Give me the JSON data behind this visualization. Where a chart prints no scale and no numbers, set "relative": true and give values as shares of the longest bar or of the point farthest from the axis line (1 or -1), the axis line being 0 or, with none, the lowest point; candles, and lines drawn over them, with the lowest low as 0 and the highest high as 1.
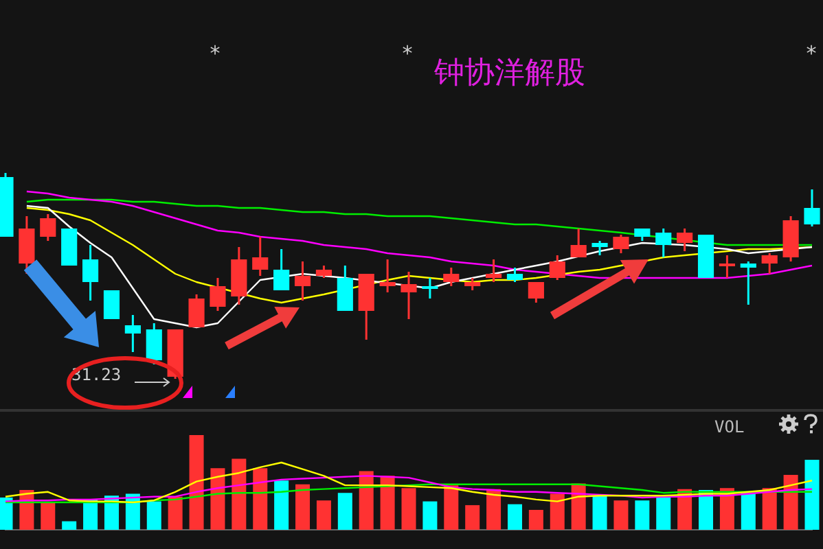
{
  "chart_data": [
    {
      "type": "candlestick",
      "title": "钟协洋解股",
      "relative": true,
      "categories": [
        null,
        null,
        null,
        null,
        null,
        null,
        null,
        null,
        null,
        null,
        null,
        null,
        null,
        null,
        null,
        null,
        null,
        null,
        null,
        null,
        null,
        null,
        null,
        null,
        null,
        null,
        null,
        null,
        null,
        null,
        null,
        null,
        null,
        null,
        null,
        null,
        null,
        null,
        null
      ],
      "ohlc": [
        [
          0.98,
          1,
          0.69,
          0.69
        ],
        [
          0.56,
          0.79,
          0.51,
          0.73
        ],
        [
          0.69,
          0.8,
          0.67,
          0.78
        ],
        [
          0.73,
          0.73,
          0.55,
          0.55
        ],
        [
          0.58,
          0.65,
          0.38,
          0.47
        ],
        [
          0.43,
          0.43,
          0.29,
          0.29
        ],
        [
          0.26,
          0.31,
          0.13,
          0.22
        ],
        [
          0.24,
          0.27,
          0.07,
          0.09
        ],
        [
          0.01,
          0.24,
          0,
          0.24
        ],
        [
          0.25,
          0.41,
          0.25,
          0.39
        ],
        [
          0.35,
          0.49,
          0.33,
          0.45
        ],
        [
          0.4,
          0.64,
          0.36,
          0.58
        ],
        [
          0.53,
          0.69,
          0.5,
          0.59
        ],
        [
          0.53,
          0.63,
          0.43,
          0.43
        ],
        [
          0.45,
          0.57,
          0.38,
          0.5
        ],
        [
          0.5,
          0.55,
          0.49,
          0.53
        ],
        [
          0.49,
          0.55,
          0.33,
          0.33
        ],
        [
          0.33,
          0.51,
          0.19,
          0.51
        ],
        [
          0.45,
          0.58,
          0.42,
          0.47
        ],
        [
          0.42,
          0.52,
          0.29,
          0.46
        ],
        [
          0.45,
          0.49,
          0.39,
          0.44
        ],
        [
          0.47,
          0.54,
          0.45,
          0.51
        ],
        [
          0.45,
          0.49,
          0.43,
          0.47
        ],
        [
          0.49,
          0.58,
          0.47,
          0.51
        ],
        [
          0.51,
          0.54,
          0.47,
          0.48
        ],
        [
          0.39,
          0.47,
          0.37,
          0.47
        ],
        [
          0.49,
          0.6,
          0.48,
          0.57
        ],
        [
          0.59,
          0.73,
          0.59,
          0.65
        ],
        [
          0.66,
          0.67,
          0.6,
          0.64
        ],
        [
          0.63,
          0.7,
          0.61,
          0.69
        ],
        [
          0.73,
          0.73,
          0.67,
          0.69
        ],
        [
          0.71,
          0.73,
          0.59,
          0.65
        ],
        [
          0.66,
          0.73,
          0.62,
          0.71
        ],
        [
          0.7,
          0.7,
          0.49,
          0.49
        ],
        [
          0.55,
          0.6,
          0.49,
          0.56
        ],
        [
          0.56,
          0.57,
          0.36,
          0.54
        ],
        [
          0.56,
          0.61,
          0.51,
          0.6
        ],
        [
          0.59,
          0.79,
          0.57,
          0.77
        ],
        [
          0.83,
          0.92,
          0.74,
          0.75
        ]
      ],
      "colors": [
        "#00ffff",
        "#ff3232",
        "#ff3232",
        "#00ffff",
        "#00ffff",
        "#00ffff",
        "#00ffff",
        "#00ffff",
        "#ff3232",
        "#ff3232",
        "#ff3232",
        "#ff3232",
        "#ff3232",
        "#00ffff",
        "#ff3232",
        "#ff3232",
        "#00ffff",
        "#ff3232",
        "#ff3232",
        "#ff3232",
        "#00ffff",
        "#ff3232",
        "#ff3232",
        "#ff3232",
        "#00ffff",
        "#ff3232",
        "#ff3232",
        "#ff3232",
        "#00ffff",
        "#ff3232",
        "#00ffff",
        "#00ffff",
        "#ff3232",
        "#00ffff",
        "#ff3232",
        "#00ffff",
        "#ff3232",
        "#ff3232",
        "#00ffff"
      ],
      "series": [
        {
          "type": "line",
          "color": "#ffffff",
          "values": [
            null,
            0.84,
            0.83,
            0.74,
            0.66,
            0.59,
            0.44,
            0.29,
            0.27,
            0.25,
            0.27,
            null,
            0.48,
            null,
            0.51,
            null,
            0.49,
            null,
            null,
            null,
            0.44,
            0.47,
            0.49,
            0.51,
            0.53,
            0.55,
            0.57,
            null,
            0.62,
            null,
            0.66,
            null,
            0.65,
            null,
            0.63,
            0.61,
            null,
            null,
            0.64
          ]
        },
        {
          "type": "line",
          "color": "#ffff00",
          "values": [
            null,
            0.83,
            0.82,
            0.8,
            0.77,
            0.71,
            0.65,
            0.58,
            0.51,
            0.47,
            null,
            null,
            0.39,
            0.37,
            0.39,
            0.41,
            null,
            null,
            0.48,
            0.5,
            0.49,
            null,
            0.47,
            0.48,
            0.48,
            0.49,
            null,
            0.52,
            0.53,
            0.55,
            null,
            0.59,
            0.6,
            null,
            0.62,
            0.63,
            0.63,
            null,
            0.64
          ]
        },
        {
          "type": "line",
          "color": "#ff00ff",
          "values": [
            null,
            0.91,
            0.9,
            0.88,
            0.87,
            0.86,
            0.84,
            0.81,
            0.78,
            0.75,
            0.72,
            0.71,
            0.69,
            0.68,
            0.67,
            0.65,
            0.64,
            0.63,
            0.61,
            0.6,
            0.59,
            0.57,
            0.56,
            0.55,
            0.53,
            0.52,
            null,
            0.5,
            0.49,
            null,
            0.49,
            0.49,
            0.49,
            0.49,
            0.49,
            0.5,
            0.51,
            0.53,
            0.55
          ]
        },
        {
          "type": "line",
          "color": "#00ee00",
          "values": [
            null,
            0.86,
            0.87,
            0.87,
            0.87,
            0.87,
            0.86,
            0.86,
            0.85,
            0.84,
            0.84,
            0.83,
            0.83,
            0.82,
            0.81,
            0.81,
            0.8,
            0.8,
            0.79,
            0.79,
            0.79,
            0.78,
            0.77,
            0.76,
            0.75,
            0.75,
            0.74,
            0.73,
            0.72,
            0.71,
            null,
            null,
            null,
            null,
            0.65,
            0.65,
            0.65,
            null,
            0.65
          ]
        }
      ],
      "annotations": [
        "31.23",
        "*",
        "*",
        "*"
      ]
    },
    {
      "type": "bar",
      "title": "VOL",
      "relative": true,
      "categories": [
        null,
        null,
        null,
        null,
        null,
        null,
        null,
        null,
        null,
        null,
        null,
        null,
        null,
        null,
        null,
        null,
        null,
        null,
        null,
        null,
        null,
        null,
        null,
        null,
        null,
        null,
        null,
        null,
        null,
        null,
        null,
        null,
        null,
        null,
        null,
        null,
        null,
        null,
        null
      ],
      "values": [
        0.34,
        0.42,
        0.29,
        0.09,
        0.32,
        0.36,
        0.38,
        0.3,
        0.35,
        1,
        0.65,
        0.75,
        0.65,
        0.52,
        0.48,
        0.31,
        0.39,
        0.62,
        0.57,
        0.44,
        0.3,
        0.47,
        0.26,
        0.43,
        0.27,
        0.21,
        0.38,
        0.49,
        0.36,
        0.31,
        0.31,
        0.34,
        0.43,
        0.42,
        0.44,
        0.39,
        0.44,
        0.58,
        0.74
      ],
      "colors": [
        "#00ffff",
        "#ff3232",
        "#ff3232",
        "#00ffff",
        "#00ffff",
        "#00ffff",
        "#00ffff",
        "#00ffff",
        "#ff3232",
        "#ff3232",
        "#ff3232",
        "#ff3232",
        "#ff3232",
        "#00ffff",
        "#ff3232",
        "#ff3232",
        "#00ffff",
        "#ff3232",
        "#ff3232",
        "#ff3232",
        "#00ffff",
        "#ff3232",
        "#ff3232",
        "#ff3232",
        "#00ffff",
        "#ff3232",
        "#ff3232",
        "#ff3232",
        "#00ffff",
        "#ff3232",
        "#00ffff",
        "#00ffff",
        "#ff3232",
        "#00ffff",
        "#ff3232",
        "#00ffff",
        "#ff3232",
        "#ff3232",
        "#00ffff"
      ],
      "series": [
        {
          "type": "line",
          "color": "#ffff00",
          "values": [
            0.35,
            0.38,
            0.4,
            0.31,
            0.3,
            0.3,
            0.29,
            0.31,
            0.4,
            0.51,
            0.56,
            0.6,
            0.66,
            0.71,
            0.64,
            0.57,
            0.47,
            0.47,
            0.47,
            0.46,
            0.45,
            0.44,
            0.4,
            0.37,
            0.35,
            0.32,
            0.3,
            0.35,
            0.36,
            0.36,
            0.36,
            0.36,
            0.37,
            0.38,
            0.38,
            0.4,
            0.42,
            0.47,
            0.52
          ]
        },
        {
          "type": "line",
          "color": "#ff00ff",
          "values": [
            0.3,
            0.31,
            0.31,
            0.32,
            0.32,
            0.33,
            0.34,
            0.35,
            0.35,
            0.4,
            0.44,
            0.47,
            0.5,
            0.53,
            0.54,
            0.55,
            0.56,
            0.57,
            0.56,
            0.55,
            0.5,
            0.45,
            0.43,
            0.42,
            0.4,
            0.4,
            0.39,
            0.38,
            0.37,
            0.36,
            0.34,
            0.35,
            0.35,
            0.36,
            0.36,
            0.38,
            0.4,
            0.42,
            0.43
          ]
        },
        {
          "type": "line",
          "color": "#00ee00",
          "values": [
            0.29,
            0.29,
            0.29,
            0.29,
            0.29,
            0.29,
            0.29,
            0.31,
            0.32,
            0.35,
            0.38,
            0.39,
            0.39,
            0.4,
            0.42,
            0.43,
            0.44,
            0.45,
            0.46,
            0.47,
            0.48,
            0.48,
            0.48,
            0.48,
            0.48,
            0.48,
            0.48,
            0.48,
            0.46,
            0.44,
            0.42,
            0.39,
            0.4,
            0.4,
            0.4,
            0.4,
            0.4,
            0.4,
            0.4
          ]
        }
      ]
    }
  ]
}
